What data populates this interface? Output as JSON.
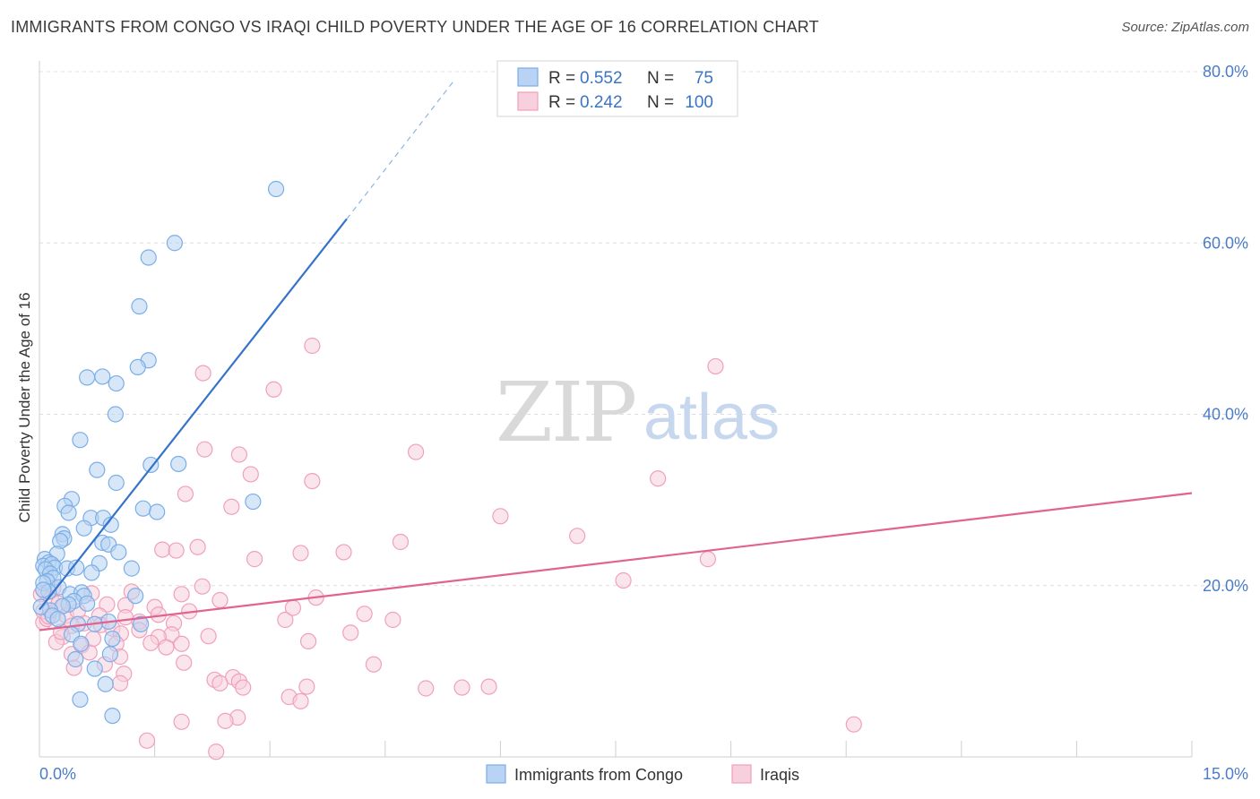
{
  "title": "IMMIGRANTS FROM CONGO VS IRAQI CHILD POVERTY UNDER THE AGE OF 16 CORRELATION CHART",
  "source": "Source: ZipAtlas.com",
  "watermark": {
    "zip": "ZIP",
    "atlas": "atlas"
  },
  "colors": {
    "blue": "#7aaee8",
    "blue_fill": "#b8d3f3",
    "blue_line": "#3473c9",
    "pink": "#f0a0bb",
    "pink_fill": "#f8cfdc",
    "pink_line": "#e0648f",
    "axis_label": "#4a7cc9"
  },
  "chart_data": {
    "type": "scatter",
    "title": "IMMIGRANTS FROM CONGO VS IRAQI CHILD POVERTY UNDER THE AGE OF 16 CORRELATION CHART",
    "xlabel": "",
    "ylabel": "Child Poverty Under the Age of 16",
    "xlim": [
      0,
      15
    ],
    "ylim": [
      0,
      80
    ],
    "x_tick_labels": [
      "0.0%",
      "15.0%"
    ],
    "y_ticks": [
      20,
      40,
      60,
      80
    ],
    "y_tick_labels": [
      "20.0%",
      "40.0%",
      "60.0%",
      "80.0%"
    ],
    "grid": true,
    "legend": {
      "placement": "top-center",
      "rows": [
        {
          "r_label": "R =",
          "r_value": "0.552",
          "n_label": "N =",
          "n_value": "75"
        },
        {
          "r_label": "R =",
          "r_value": "0.242",
          "n_label": "N =",
          "n_value": "100"
        }
      ]
    },
    "bottom_legend": [
      "Immigrants from Congo",
      "Iraqis"
    ],
    "series": [
      {
        "name": "Immigrants from Congo",
        "color": "#7aaee8",
        "trend": {
          "x": [
            0,
            4.0
          ],
          "y": [
            17.2,
            62.8
          ],
          "dashed_to": {
            "x": 5.4,
            "y": 79.0
          }
        },
        "points": [
          [
            3.08,
            66.3
          ],
          [
            1.76,
            60.0
          ],
          [
            1.42,
            58.3
          ],
          [
            1.3,
            52.6
          ],
          [
            1.42,
            46.3
          ],
          [
            1.28,
            45.5
          ],
          [
            0.62,
            44.3
          ],
          [
            0.82,
            44.4
          ],
          [
            1.0,
            43.6
          ],
          [
            0.99,
            40.0
          ],
          [
            0.53,
            37.0
          ],
          [
            0.75,
            33.5
          ],
          [
            1.45,
            34.1
          ],
          [
            1.81,
            34.2
          ],
          [
            1.0,
            32.0
          ],
          [
            2.78,
            29.8
          ],
          [
            0.42,
            30.1
          ],
          [
            0.33,
            29.3
          ],
          [
            1.35,
            29.0
          ],
          [
            1.53,
            28.6
          ],
          [
            0.38,
            28.5
          ],
          [
            0.67,
            27.9
          ],
          [
            0.83,
            27.9
          ],
          [
            0.93,
            27.1
          ],
          [
            0.58,
            26.7
          ],
          [
            0.3,
            26.0
          ],
          [
            0.32,
            25.5
          ],
          [
            0.27,
            25.2
          ],
          [
            0.82,
            25.0
          ],
          [
            0.9,
            24.8
          ],
          [
            1.03,
            23.9
          ],
          [
            0.23,
            23.7
          ],
          [
            0.07,
            23.1
          ],
          [
            0.12,
            22.7
          ],
          [
            0.05,
            22.3
          ],
          [
            0.16,
            22.5
          ],
          [
            0.2,
            22.1
          ],
          [
            0.08,
            21.9
          ],
          [
            0.14,
            21.4
          ],
          [
            0.36,
            22.0
          ],
          [
            0.48,
            22.1
          ],
          [
            0.78,
            22.6
          ],
          [
            1.2,
            22.0
          ],
          [
            0.68,
            21.5
          ],
          [
            0.18,
            20.9
          ],
          [
            0.1,
            20.5
          ],
          [
            0.05,
            20.3
          ],
          [
            0.25,
            19.8
          ],
          [
            0.12,
            19.3
          ],
          [
            0.4,
            19.0
          ],
          [
            0.55,
            19.2
          ],
          [
            0.58,
            18.8
          ],
          [
            0.45,
            18.2
          ],
          [
            0.38,
            17.8
          ],
          [
            0.62,
            17.9
          ],
          [
            0.3,
            17.6
          ],
          [
            1.25,
            18.8
          ],
          [
            0.14,
            17.1
          ],
          [
            0.02,
            17.5
          ],
          [
            0.17,
            16.5
          ],
          [
            0.24,
            16.1
          ],
          [
            0.9,
            15.8
          ],
          [
            0.5,
            15.5
          ],
          [
            0.72,
            15.5
          ],
          [
            1.32,
            15.5
          ],
          [
            0.42,
            14.3
          ],
          [
            0.54,
            13.2
          ],
          [
            0.95,
            13.8
          ],
          [
            0.92,
            12.0
          ],
          [
            0.47,
            11.4
          ],
          [
            0.72,
            10.3
          ],
          [
            0.86,
            8.5
          ],
          [
            0.53,
            6.7
          ],
          [
            0.95,
            4.8
          ],
          [
            0.05,
            19.5
          ]
        ]
      },
      {
        "name": "Iraqis",
        "color": "#f0a0bb",
        "trend": {
          "x": [
            0,
            15
          ],
          "y": [
            14.8,
            30.8
          ]
        },
        "points": [
          [
            3.55,
            48.0
          ],
          [
            8.8,
            45.6
          ],
          [
            2.13,
            44.8
          ],
          [
            3.05,
            42.9
          ],
          [
            2.15,
            35.9
          ],
          [
            2.6,
            35.3
          ],
          [
            4.9,
            35.6
          ],
          [
            3.55,
            32.2
          ],
          [
            8.05,
            32.5
          ],
          [
            2.75,
            33.0
          ],
          [
            1.9,
            30.7
          ],
          [
            2.5,
            29.2
          ],
          [
            6.0,
            28.1
          ],
          [
            7.0,
            25.8
          ],
          [
            4.7,
            25.1
          ],
          [
            1.6,
            24.2
          ],
          [
            2.06,
            24.5
          ],
          [
            1.78,
            24.1
          ],
          [
            3.4,
            23.8
          ],
          [
            3.96,
            23.9
          ],
          [
            2.8,
            23.1
          ],
          [
            8.7,
            23.1
          ],
          [
            7.6,
            20.6
          ],
          [
            2.12,
            19.9
          ],
          [
            1.85,
            19.0
          ],
          [
            0.08,
            19.2
          ],
          [
            0.18,
            19.7
          ],
          [
            2.35,
            18.3
          ],
          [
            3.6,
            18.6
          ],
          [
            0.3,
            17.6
          ],
          [
            1.5,
            17.5
          ],
          [
            0.88,
            17.8
          ],
          [
            1.12,
            17.7
          ],
          [
            1.55,
            16.6
          ],
          [
            0.35,
            16.5
          ],
          [
            0.78,
            16.5
          ],
          [
            4.23,
            16.7
          ],
          [
            3.2,
            16.0
          ],
          [
            4.6,
            16.0
          ],
          [
            1.12,
            16.3
          ],
          [
            1.3,
            15.8
          ],
          [
            0.05,
            15.7
          ],
          [
            0.1,
            16.1
          ],
          [
            0.58,
            15.6
          ],
          [
            0.8,
            15.4
          ],
          [
            1.75,
            15.6
          ],
          [
            0.42,
            15.3
          ],
          [
            0.95,
            15.0
          ],
          [
            1.3,
            14.8
          ],
          [
            1.72,
            14.3
          ],
          [
            1.55,
            14.0
          ],
          [
            2.2,
            14.1
          ],
          [
            4.05,
            14.5
          ],
          [
            0.3,
            14.0
          ],
          [
            1.06,
            14.4
          ],
          [
            0.22,
            13.4
          ],
          [
            0.55,
            13.0
          ],
          [
            1.0,
            13.2
          ],
          [
            1.45,
            13.3
          ],
          [
            1.85,
            13.2
          ],
          [
            3.5,
            13.5
          ],
          [
            1.65,
            12.8
          ],
          [
            0.65,
            12.2
          ],
          [
            0.42,
            12.0
          ],
          [
            1.05,
            11.7
          ],
          [
            0.85,
            10.8
          ],
          [
            1.88,
            11.0
          ],
          [
            4.35,
            10.8
          ],
          [
            0.45,
            10.4
          ],
          [
            1.1,
            9.7
          ],
          [
            2.28,
            9.0
          ],
          [
            2.52,
            9.3
          ],
          [
            2.6,
            8.8
          ],
          [
            2.35,
            8.6
          ],
          [
            2.65,
            8.1
          ],
          [
            3.48,
            8.2
          ],
          [
            5.5,
            8.1
          ],
          [
            5.85,
            8.2
          ],
          [
            5.03,
            8.0
          ],
          [
            1.05,
            8.6
          ],
          [
            3.25,
            7.0
          ],
          [
            3.4,
            6.5
          ],
          [
            2.58,
            4.6
          ],
          [
            1.85,
            4.1
          ],
          [
            2.42,
            4.2
          ],
          [
            10.6,
            3.8
          ],
          [
            1.4,
            1.9
          ],
          [
            2.3,
            0.6
          ],
          [
            0.02,
            19.0
          ],
          [
            0.15,
            18.5
          ],
          [
            0.25,
            17.9
          ],
          [
            0.05,
            17.0
          ],
          [
            0.12,
            16.4
          ],
          [
            1.95,
            17.0
          ],
          [
            3.3,
            17.4
          ],
          [
            0.68,
            19.1
          ],
          [
            1.2,
            19.3
          ],
          [
            0.5,
            17.0
          ],
          [
            0.28,
            14.6
          ],
          [
            0.7,
            13.8
          ]
        ]
      }
    ]
  }
}
